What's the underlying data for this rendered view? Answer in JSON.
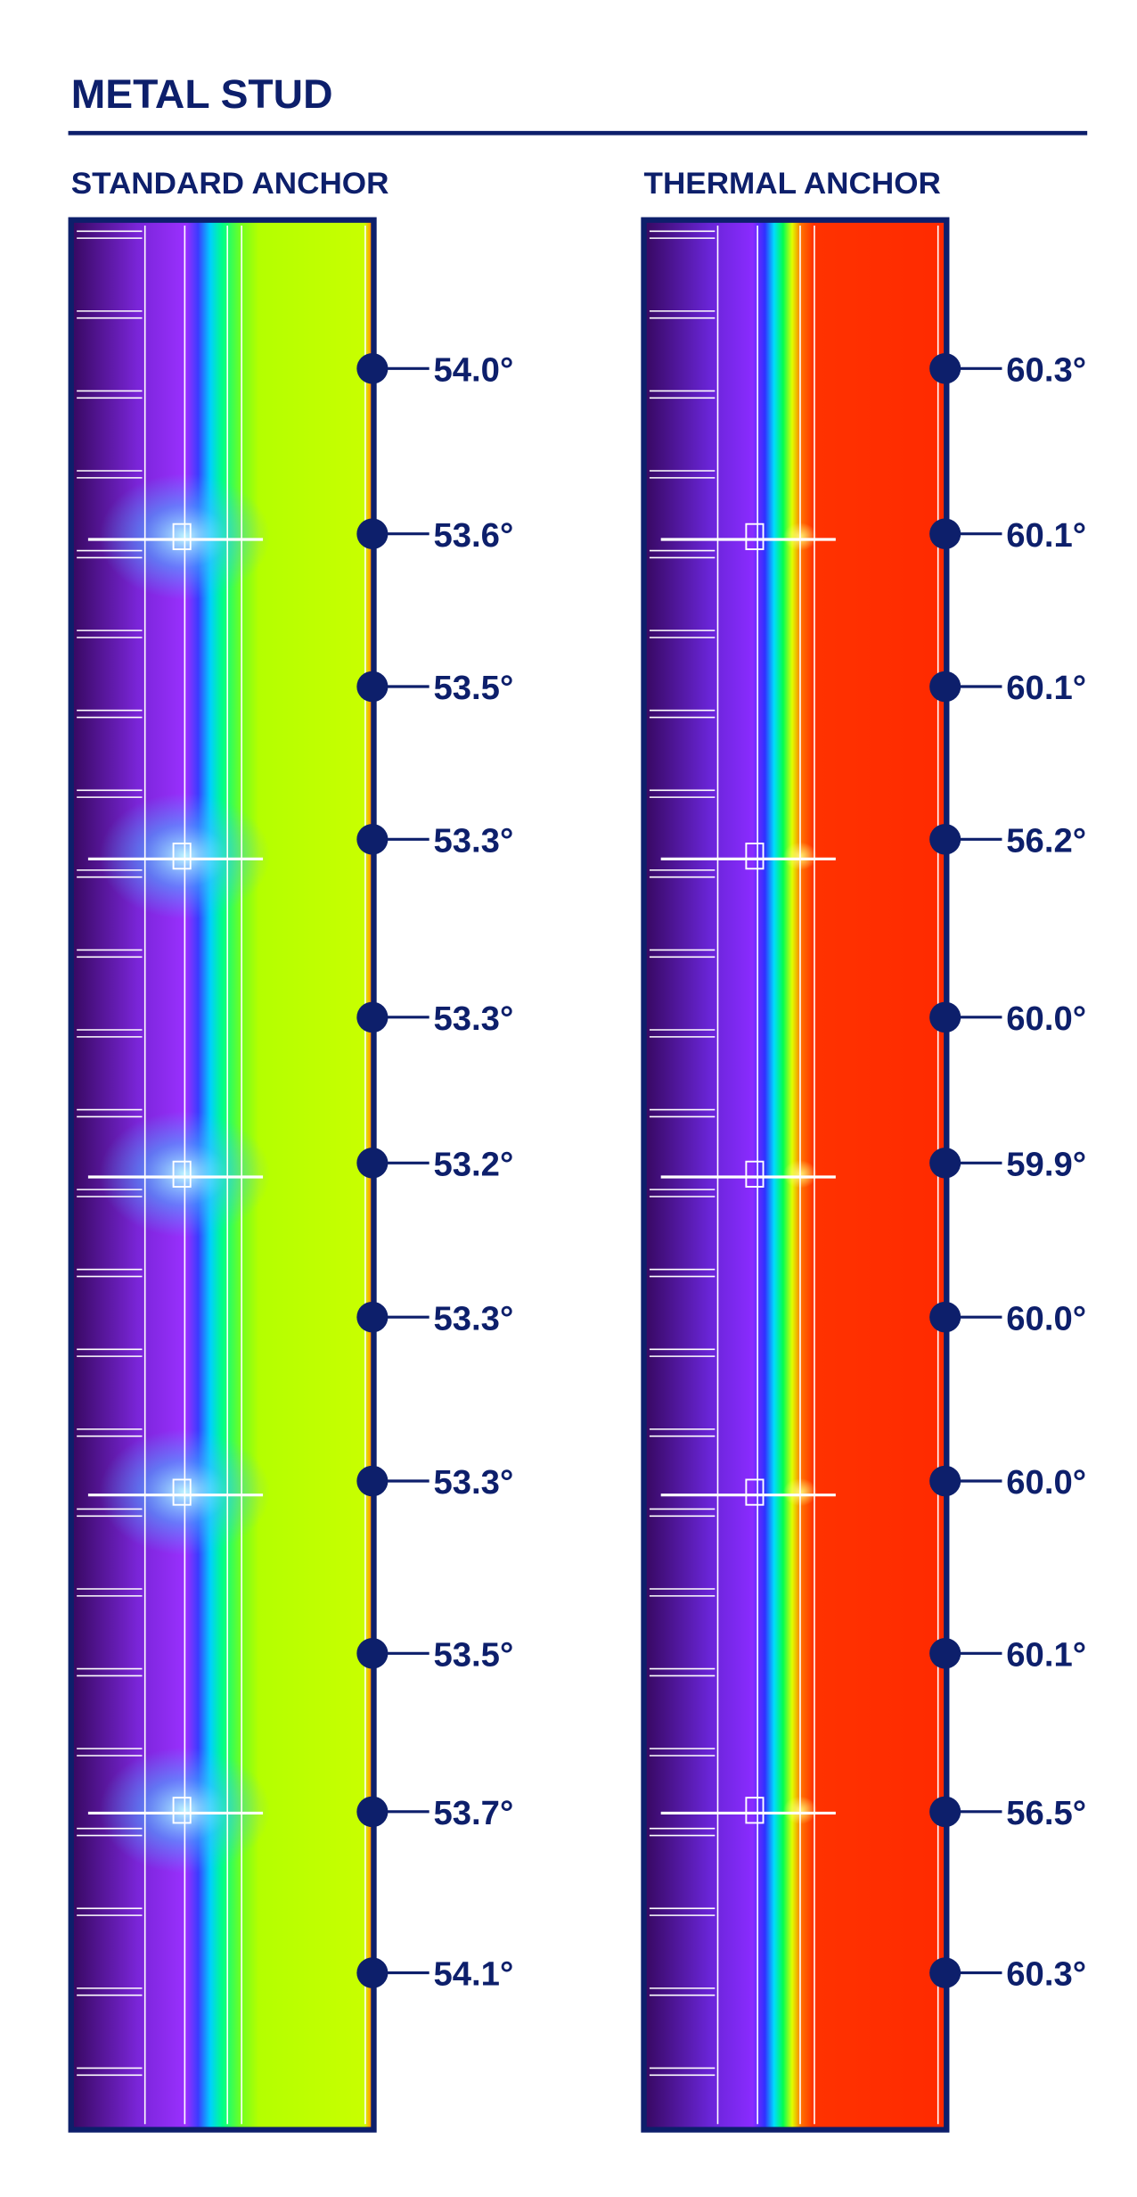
{
  "title": "METAL STUD",
  "panels": [
    {
      "heading": "STANDARD ANCHOR",
      "readings": [
        "54.0°",
        "53.6°",
        "53.5°",
        "53.3°",
        "53.3°",
        "53.2°",
        "53.3°",
        "53.3°",
        "53.5°",
        "53.7°",
        "54.1°"
      ]
    },
    {
      "heading": "THERMAL ANCHOR",
      "readings": [
        "60.3°",
        "60.1°",
        "60.1°",
        "56.2°",
        "60.0°",
        "59.9°",
        "60.0°",
        "60.0°",
        "60.1°",
        "56.5°",
        "60.3°"
      ]
    }
  ]
}
